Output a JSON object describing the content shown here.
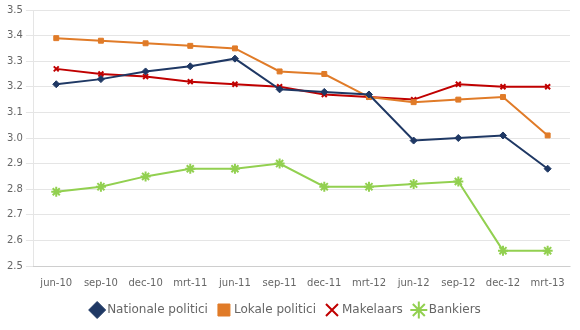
{
  "chart_data": {
    "type": "line",
    "categories": [
      "jun-10",
      "sep-10",
      "dec-10",
      "mrt-11",
      "jun-11",
      "sep-11",
      "dec-11",
      "mrt-12",
      "jun-12",
      "sep-12",
      "dec-12",
      "mrt-13"
    ],
    "series": [
      {
        "name": "Nationale politici",
        "color": "#1F3864",
        "marker": "diamond",
        "values": [
          3.21,
          3.23,
          3.26,
          3.28,
          3.31,
          3.19,
          3.18,
          3.17,
          2.99,
          3.0,
          3.01,
          2.88
        ]
      },
      {
        "name": "Lokale politici",
        "color": "#E07B28",
        "marker": "square",
        "values": [
          3.39,
          3.38,
          3.37,
          3.36,
          3.35,
          3.26,
          3.25,
          3.16,
          3.14,
          3.15,
          3.16,
          3.01
        ]
      },
      {
        "name": "Makelaars",
        "color": "#C00000",
        "marker": "x",
        "values": [
          3.27,
          3.25,
          3.24,
          3.22,
          3.21,
          3.2,
          3.17,
          3.16,
          3.15,
          3.21,
          3.2,
          3.2
        ]
      },
      {
        "name": "Bankiers",
        "color": "#92D050",
        "marker": "star",
        "values": [
          2.79,
          2.81,
          2.85,
          2.88,
          2.88,
          2.9,
          2.81,
          2.81,
          2.82,
          2.83,
          2.56,
          2.56
        ]
      }
    ],
    "ylim": [
      2.5,
      3.5
    ],
    "yticks": [
      2.5,
      2.6,
      2.7,
      2.8,
      2.9,
      {
        "value": 3.0,
        "label": "3.0"
      },
      3.1,
      3.2,
      3.3,
      3.4,
      3.5
    ],
    "grid": true,
    "legend": "bottom"
  }
}
